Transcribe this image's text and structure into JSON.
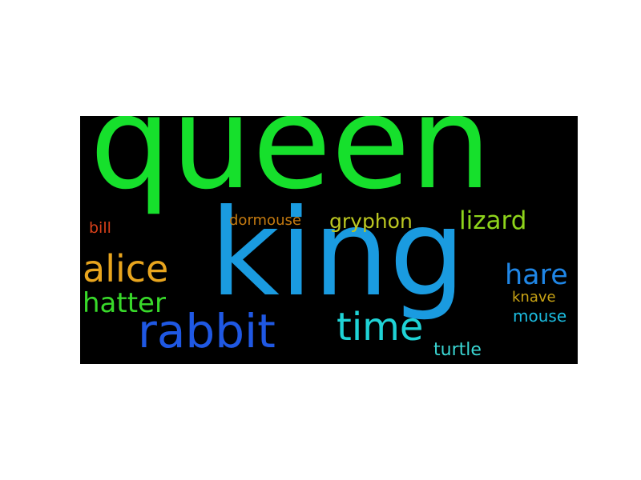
{
  "words": [
    {
      "text": "queen",
      "color": "#16e02c"
    },
    {
      "text": "king",
      "color": "#1a9be0"
    },
    {
      "text": "rabbit",
      "color": "#1f58e3"
    },
    {
      "text": "time",
      "color": "#1fd3d6"
    },
    {
      "text": "alice",
      "color": "#e8a51e"
    },
    {
      "text": "hatter",
      "color": "#38d92a"
    },
    {
      "text": "hare",
      "color": "#1f86e6"
    },
    {
      "text": "lizard",
      "color": "#8ed41b"
    },
    {
      "text": "gryphon",
      "color": "#bcc721"
    },
    {
      "text": "dormouse",
      "color": "#c47a10"
    },
    {
      "text": "bill",
      "color": "#d8401a"
    },
    {
      "text": "knave",
      "color": "#c9a314"
    },
    {
      "text": "mouse",
      "color": "#1bbce0"
    },
    {
      "text": "turtle",
      "color": "#3ad6d3"
    }
  ]
}
